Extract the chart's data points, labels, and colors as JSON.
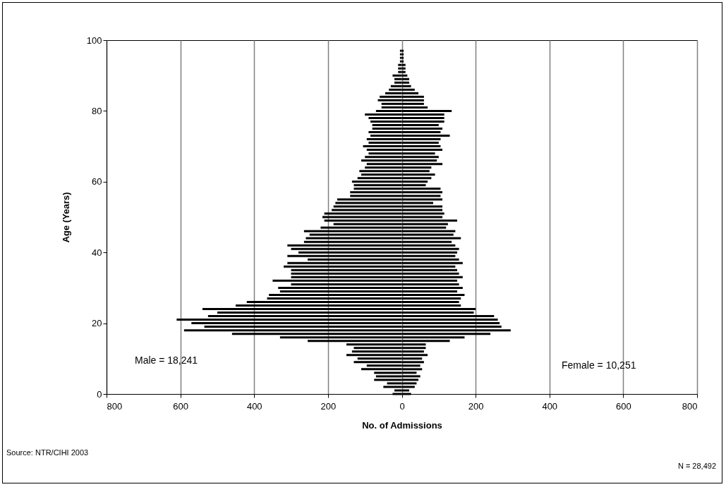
{
  "chart_data": {
    "type": "bar",
    "orientation": "horizontal",
    "stacked": true,
    "xlabel": "No. of Admissions",
    "ylabel": "Age (Years)",
    "x": [
      0,
      1,
      2,
      3,
      4,
      5,
      6,
      7,
      8,
      9,
      10,
      11,
      12,
      13,
      14,
      15,
      16,
      17,
      18,
      19,
      20,
      21,
      22,
      23,
      24,
      25,
      26,
      27,
      28,
      29,
      30,
      31,
      32,
      33,
      34,
      35,
      36,
      37,
      38,
      39,
      40,
      41,
      42,
      43,
      44,
      45,
      46,
      47,
      48,
      49,
      50,
      51,
      52,
      53,
      54,
      55,
      56,
      57,
      58,
      59,
      60,
      61,
      62,
      63,
      64,
      65,
      66,
      67,
      68,
      69,
      70,
      71,
      72,
      73,
      74,
      75,
      76,
      77,
      78,
      79,
      80,
      81,
      82,
      83,
      84,
      85,
      86,
      87,
      88,
      89,
      90,
      91,
      92,
      93,
      94,
      95,
      96,
      97
    ],
    "series": [
      {
        "color": "#000000",
        "values": [
          -25,
          -20,
          -50,
          -40,
          -75,
          -70,
          -75,
          -110,
          -95,
          -130,
          -120,
          -150,
          -135,
          -130,
          -150,
          -255,
          -330,
          -460,
          -590,
          -535,
          -570,
          -610,
          -525,
          -500,
          -540,
          -450,
          -420,
          -365,
          -360,
          -330,
          -335,
          -300,
          -350,
          -300,
          -300,
          -300,
          -320,
          -310,
          -255,
          -310,
          -280,
          -300,
          -310,
          -265,
          -260,
          -250,
          -265,
          -220,
          -185,
          -210,
          -215,
          -210,
          -190,
          -185,
          -180,
          -175,
          -140,
          -140,
          -130,
          -130,
          -135,
          -120,
          -110,
          -115,
          -100,
          -95,
          -110,
          -100,
          -90,
          -95,
          -105,
          -90,
          -95,
          -85,
          -90,
          -80,
          -80,
          -85,
          -90,
          -100,
          -70,
          -55,
          -55,
          -65,
          -60,
          -45,
          -35,
          -30,
          -20,
          -20,
          -25,
          -10,
          -10,
          -10,
          -5,
          -5,
          -5,
          -5
        ]
      },
      {
        "color": "#000000",
        "values": [
          25,
          20,
          35,
          40,
          45,
          50,
          40,
          55,
          50,
          60,
          55,
          70,
          60,
          65,
          65,
          130,
          170,
          240,
          295,
          270,
          265,
          260,
          250,
          195,
          200,
          160,
          155,
          160,
          170,
          150,
          165,
          155,
          150,
          165,
          155,
          150,
          145,
          165,
          155,
          145,
          150,
          155,
          145,
          135,
          160,
          140,
          145,
          120,
          125,
          150,
          110,
          115,
          110,
          110,
          85,
          110,
          105,
          110,
          105,
          65,
          70,
          80,
          90,
          75,
          80,
          110,
          95,
          100,
          90,
          110,
          105,
          100,
          105,
          130,
          105,
          110,
          100,
          115,
          115,
          115,
          135,
          70,
          60,
          60,
          60,
          45,
          35,
          25,
          20,
          20,
          15,
          10,
          10,
          10,
          5,
          5,
          5,
          5
        ]
      }
    ],
    "xlim": [
      -800,
      800
    ],
    "xticks": [
      {
        "value": -800,
        "label": "800"
      },
      {
        "value": -600,
        "label": "600"
      },
      {
        "value": -400,
        "label": "400"
      },
      {
        "value": -200,
        "label": "200"
      },
      0,
      200,
      400,
      600,
      800
    ],
    "ylim": [
      0,
      100
    ],
    "yticks": [
      0,
      20,
      40,
      60,
      80,
      100
    ],
    "grid": "x",
    "annotations": [
      "Male = 18,241",
      "Female = 10,251",
      "Source: NTR/CIHI 2003",
      "N = 28,492"
    ]
  }
}
